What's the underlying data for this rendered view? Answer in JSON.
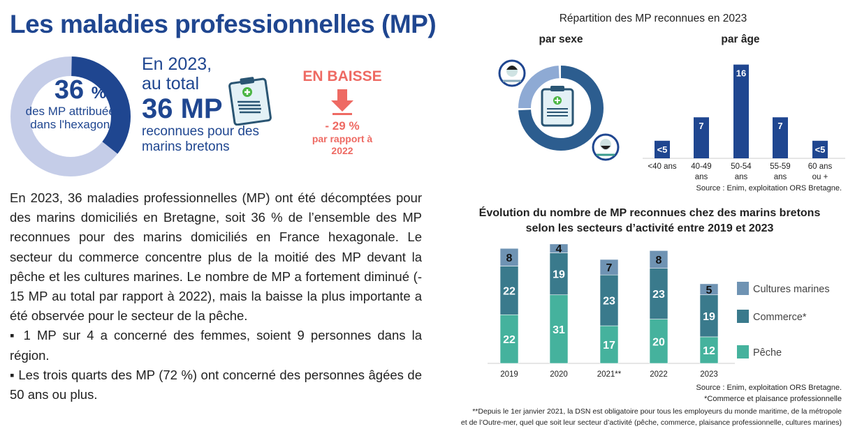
{
  "title": "Les maladies professionnelles (MP)",
  "kpi": {
    "donut_percent": 36,
    "percent_label": "36",
    "percent_sign": "%",
    "percent_caption": "des MP attribuées dans l'hexagone",
    "year_line": "En 2023,",
    "total_line": "au total",
    "total_value": "36 MP",
    "total_caption": "reconnues pour des marins bretons",
    "trend_title": "EN BAISSE",
    "trend_value": "- 29 %",
    "trend_caption": "par rapport à 2022",
    "colors": {
      "primary": "#1f4690",
      "light": "#c5cde8",
      "trend": "#ee6a63"
    }
  },
  "paragraph": {
    "main": "En 2023, 36 maladies professionnelles (MP) ont été décomptées pour des marins domiciliés en Bretagne, soit 36 % de l’ensemble des MP reconnues pour des marins domiciliés en France hexagonale. Le secteur du commerce concentre plus de la moitié des MP devant la pêche et les cultures marines. Le nombre de MP a fortement diminué (- 15 MP au total par rapport à 2022), mais la baisse la plus importante a été observée pour le secteur de la pêche.",
    "bullet1": "▪ 1 MP sur 4 a concerné des femmes, soient 9 personnes dans la région.",
    "bullet2": "▪ Les trois quarts des MP (72 %) ont concerné des personnes âgées de 50 ans ou plus."
  },
  "repartition": {
    "title": "Répartition des MP reconnues en 2023",
    "sexe_label": "par sexe",
    "age_label": "par âge",
    "source": "Source : Enim, exploitation ORS Bretagne."
  },
  "evolution": {
    "title_line1": "Évolution du nombre de MP reconnues chez des marins bretons",
    "title_line2": "selon les secteurs d’activité entre 2019 et 2023",
    "source": "Source : Enim, exploitation ORS Bretagne.",
    "note1": "*Commerce et plaisance professionnelle",
    "note2": "**Depuis le 1er janvier 2021, la DSN est obligatoire pour tous les employeurs du monde maritime, de la métropole",
    "note3": "et de l’Outre-mer, quel que soit leur secteur d’activité (pêche, commerce, plaisance professionnelle, cultures marines)"
  },
  "chart_data": [
    {
      "type": "pie",
      "title": "par sexe",
      "categories": [
        "Femmes",
        "Hommes"
      ],
      "values": [
        25,
        75
      ],
      "colors": [
        "#8eaad4",
        "#2c5d8f"
      ]
    },
    {
      "type": "bar",
      "title": "par âge",
      "categories": [
        "<40 ans",
        "40-49 ans",
        "50-54 ans",
        "55-59 ans",
        "60 ans ou +"
      ],
      "values": [
        3,
        7,
        16,
        7,
        3
      ],
      "value_labels": [
        "<5",
        "7",
        "16",
        "7",
        "<5"
      ],
      "color": "#1f4690"
    },
    {
      "type": "bar",
      "stacked": true,
      "categories": [
        "2019",
        "2020",
        "2021**",
        "2022",
        "2023"
      ],
      "series": [
        {
          "name": "Pêche",
          "values": [
            22,
            31,
            17,
            20,
            12
          ],
          "color": "#45b29d"
        },
        {
          "name": "Commerce*",
          "values": [
            22,
            19,
            23,
            23,
            19
          ],
          "color": "#3a7a8c"
        },
        {
          "name": "Cultures marines",
          "values": [
            8,
            4,
            7,
            8,
            5
          ],
          "color": "#6f93b3"
        }
      ],
      "legend": "right"
    }
  ]
}
